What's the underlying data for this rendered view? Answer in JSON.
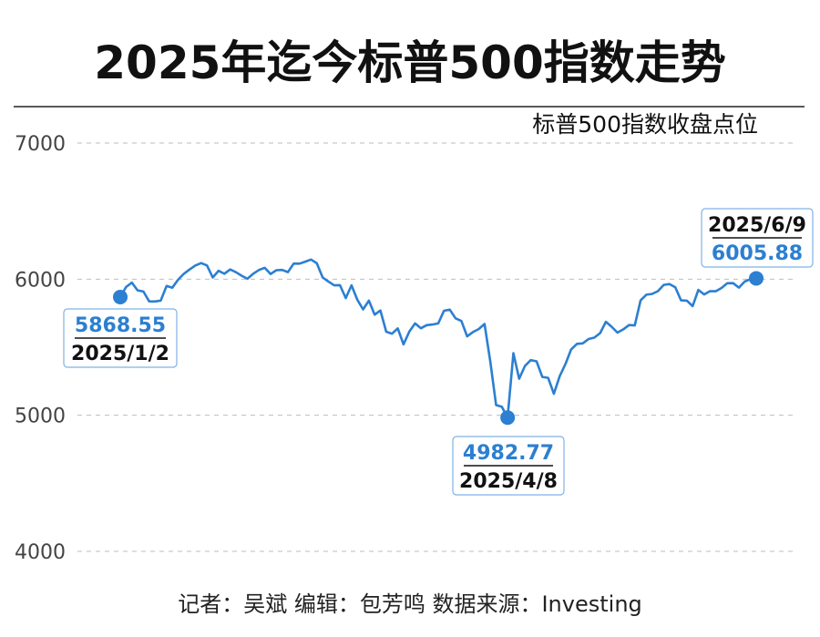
{
  "chart_data": {
    "type": "line",
    "title": "2025年迄今标普500指数走势",
    "ylabel": "标普500指数收盘点位",
    "ylim": [
      4000,
      7000
    ],
    "yticks": [
      4000,
      5000,
      6000,
      7000
    ],
    "grid": true,
    "line_color": "#2c7fd1",
    "series": [
      {
        "values": [
          5868.55,
          5942,
          5975,
          5918,
          5909,
          5837,
          5836,
          5842,
          5950,
          5937,
          5996,
          6040,
          6071,
          6101,
          6118,
          6101,
          6012,
          6062,
          6040,
          6071,
          6051,
          6025,
          6003,
          6040,
          6068,
          6083,
          6038,
          6066,
          6068,
          6052,
          6115,
          6114,
          6129,
          6144,
          6117,
          6013,
          5983,
          5955,
          5956,
          5861,
          5955,
          5849,
          5778,
          5842,
          5739,
          5770,
          5614,
          5599,
          5638,
          5521,
          5615,
          5675,
          5639,
          5662,
          5667,
          5675,
          5768,
          5776,
          5712,
          5693,
          5580,
          5611,
          5633,
          5671,
          5396,
          5075,
          5062,
          4982.77,
          5456,
          5268,
          5363,
          5405,
          5396,
          5282,
          5275,
          5158,
          5287,
          5376,
          5484,
          5525,
          5528,
          5560,
          5570,
          5604,
          5687,
          5650,
          5607,
          5631,
          5663,
          5660,
          5844,
          5886,
          5892,
          5912,
          5958,
          5964,
          5940,
          5844,
          5842,
          5802,
          5921,
          5888,
          5912,
          5911,
          5935,
          5970,
          5971,
          5938,
          5982,
          6000,
          6005.88
        ]
      }
    ],
    "annotations": [
      {
        "value": "5868.55",
        "date": "2025/1/2",
        "point_index": 0
      },
      {
        "value": "4982.77",
        "date": "2025/4/8",
        "point_index": 67
      },
      {
        "value": "6005.88",
        "date": "2025/6/9",
        "point_index": 110
      }
    ]
  },
  "credit": "记者：吴斌  编辑：包芳鸣  数据来源：Investing"
}
